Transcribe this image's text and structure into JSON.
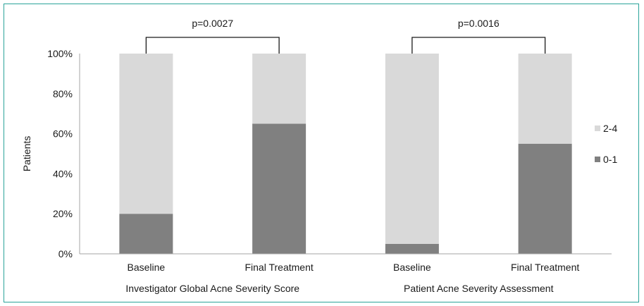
{
  "chart_data": {
    "type": "bar",
    "stacked": true,
    "ylabel": "Patients",
    "ylim": [
      0,
      100
    ],
    "yticks": [
      "0%",
      "20%",
      "40%",
      "60%",
      "80%",
      "100%"
    ],
    "groups": [
      {
        "label": "Investigator Global Acne Severity Score",
        "categories": [
          "Baseline",
          "Final Treatment"
        ],
        "p_value": "p=0.0027"
      },
      {
        "label": "Patient Acne Severity Assessment",
        "categories": [
          "Baseline",
          "Final Treatment"
        ],
        "p_value": "p=0.0016"
      }
    ],
    "series": [
      {
        "name": "0-1",
        "color": "#808080",
        "values": [
          20,
          65,
          5,
          55
        ]
      },
      {
        "name": "2-4",
        "color": "#d9d9d9",
        "values": [
          80,
          35,
          95,
          45
        ]
      }
    ],
    "legend_position": "right",
    "legend_order": [
      "2-4",
      "0-1"
    ],
    "grid": false
  }
}
